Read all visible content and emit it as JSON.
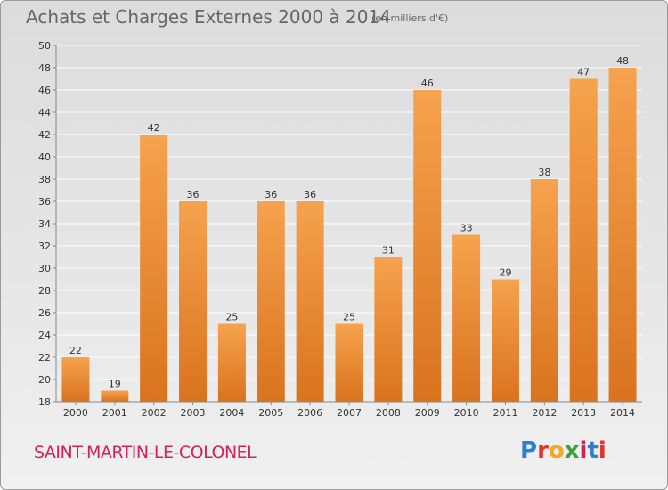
{
  "title": "Achats et Charges Externes 2000 à 2014",
  "unit_note": "(en milliers d'€)",
  "commune": "SAINT-MARTIN-LE-COLONEL",
  "logo": {
    "text": "Proxiti",
    "letters": [
      "P",
      "r",
      "o",
      "x",
      "i",
      "t",
      "i"
    ],
    "colors": [
      "#2a7fd1",
      "#e6332a",
      "#f5a623",
      "#3aa03a",
      "#d4205b",
      "#2a7fd1",
      "#e6332a"
    ]
  },
  "colors": {
    "bar_light": "#f6a24e",
    "bar_dark": "#d9731e",
    "grid": "#ffffff",
    "title": "#666666",
    "commune": "#d4205b"
  },
  "chart_data": {
    "type": "bar",
    "title": "Achats et Charges Externes 2000 à 2014",
    "subtitle": "(en milliers d'€)",
    "categories": [
      "2000",
      "2001",
      "2002",
      "2003",
      "2004",
      "2005",
      "2006",
      "2007",
      "2008",
      "2009",
      "2010",
      "2011",
      "2012",
      "2013",
      "2014"
    ],
    "values": [
      22,
      19,
      42,
      36,
      25,
      36,
      36,
      25,
      31,
      46,
      33,
      29,
      38,
      47,
      48
    ],
    "ylim": [
      18,
      50
    ],
    "yticks": [
      18,
      20,
      22,
      24,
      26,
      28,
      30,
      32,
      34,
      36,
      38,
      40,
      42,
      44,
      46,
      48,
      50
    ],
    "grid": true,
    "data_labels": true
  }
}
